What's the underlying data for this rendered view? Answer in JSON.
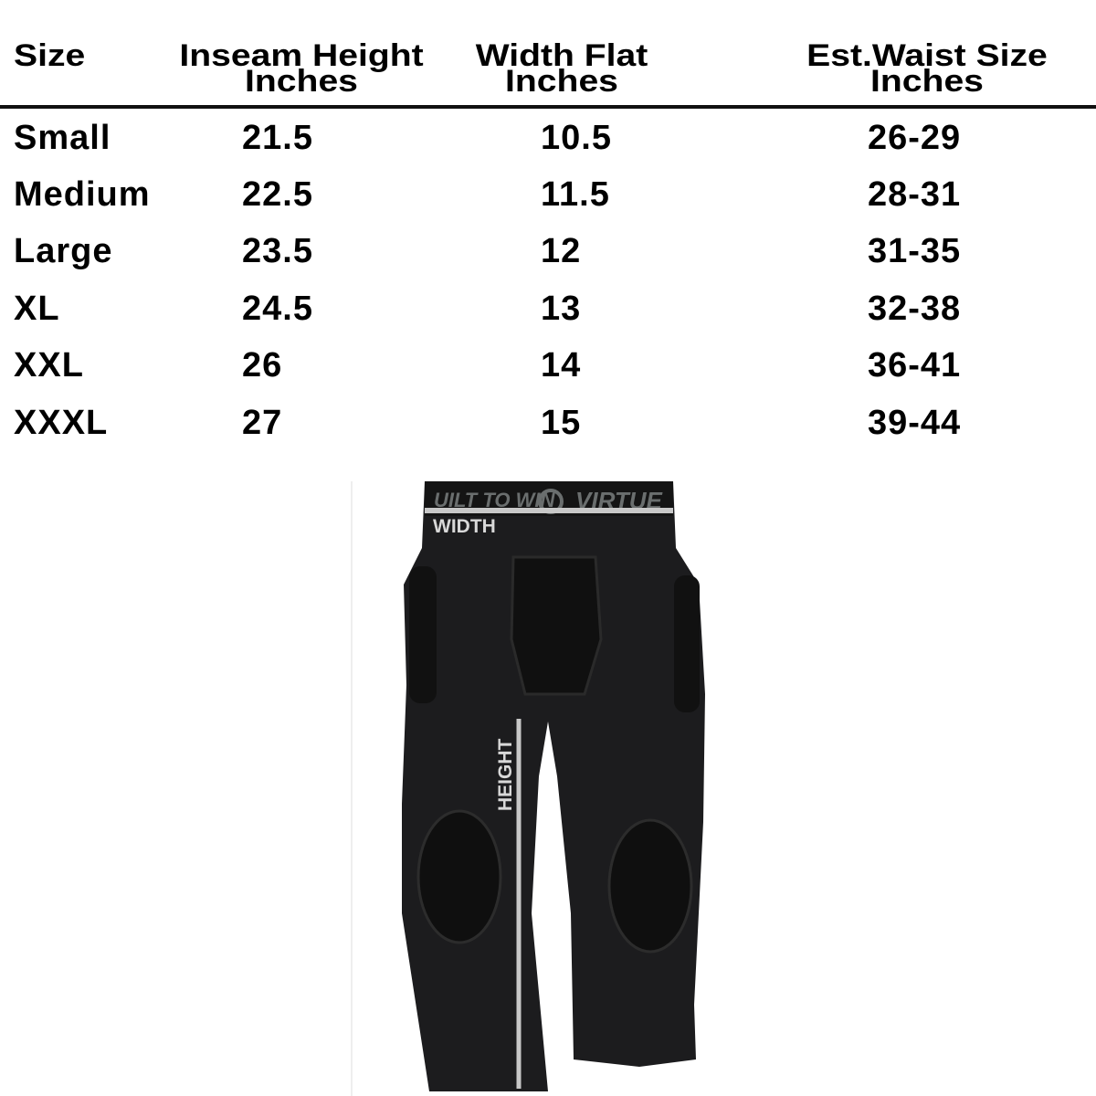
{
  "table": {
    "headers": [
      {
        "line1": "Size",
        "line2": ""
      },
      {
        "line1": "Inseam Height",
        "line2": "Inches"
      },
      {
        "line1": "Width Flat",
        "line2": "Inches"
      },
      {
        "line1": "Est.Waist Size",
        "line2": "Inches"
      }
    ],
    "rows": [
      [
        "Small",
        "21.5",
        "10.5",
        "26-29"
      ],
      [
        "Medium",
        "22.5",
        "11.5",
        "28-31"
      ],
      [
        "Large",
        "23.5",
        "12",
        "31-35"
      ],
      [
        "XL",
        "24.5",
        "13",
        "32-38"
      ],
      [
        "XXL",
        "26",
        "14",
        "36-41"
      ],
      [
        "XXXL",
        "27",
        "15",
        "39-44"
      ]
    ]
  },
  "image": {
    "width_label": "WIDTH",
    "height_label": "HEIGHT",
    "waistband_text_left": "UILT TO WIN",
    "waistband_text_right": "VIRTUE",
    "garment_color": "#1c1c1e",
    "measure_line_color": "#c8c8c8"
  }
}
